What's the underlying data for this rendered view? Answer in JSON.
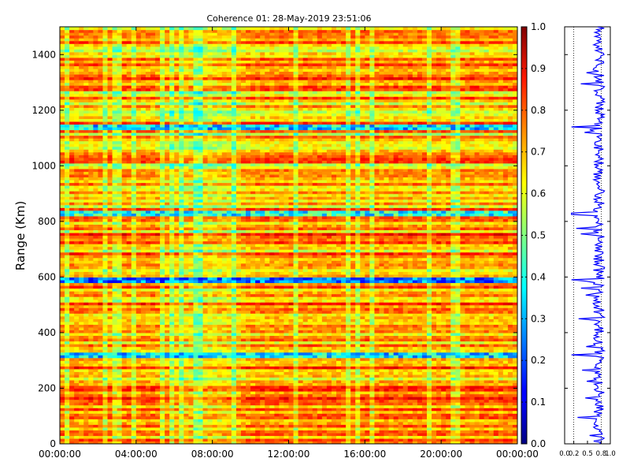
{
  "chart_data": [
    {
      "type": "heatmap",
      "title": "Coherence 01: 28-May-2019 23:51:06",
      "xlabel": "",
      "ylabel": "Range (Km)",
      "x_ticks": [
        "00:00:00",
        "04:00:00",
        "08:00:00",
        "12:00:00",
        "16:00:00",
        "20:00:00",
        "00:00:00"
      ],
      "y_ticks": [
        0,
        200,
        400,
        600,
        800,
        1000,
        1200,
        1400
      ],
      "ylim": [
        0,
        1500
      ],
      "value_range": [
        0.0,
        1.0
      ],
      "colormap": "jet",
      "typical_value": 0.72,
      "low_coherence_bands_km": [
        {
          "range": 320,
          "value": 0.2
        },
        {
          "range": 590,
          "value": 0.1
        },
        {
          "range": 830,
          "value": 0.25
        },
        {
          "range": 1140,
          "value": 0.2
        }
      ],
      "colorbar": {
        "ticks": [
          "0.0",
          "0.1",
          "0.2",
          "0.3",
          "0.4",
          "0.5",
          "0.6",
          "0.7",
          "0.8",
          "0.9",
          "1.0"
        ]
      }
    },
    {
      "type": "line",
      "title": "",
      "xlim": [
        0.0,
        1.0
      ],
      "ylim": [
        0,
        1500
      ],
      "x_ticks": [
        "0.0",
        "0.2",
        "0.5",
        "0.8",
        "1.0"
      ],
      "reference_lines_x": [
        0.2,
        0.8
      ],
      "series": [
        {
          "color": "#0000ff"
        }
      ]
    }
  ],
  "colors": {
    "profile_line": "#0000ff",
    "axes": "#000000",
    "background": "#ffffff"
  }
}
